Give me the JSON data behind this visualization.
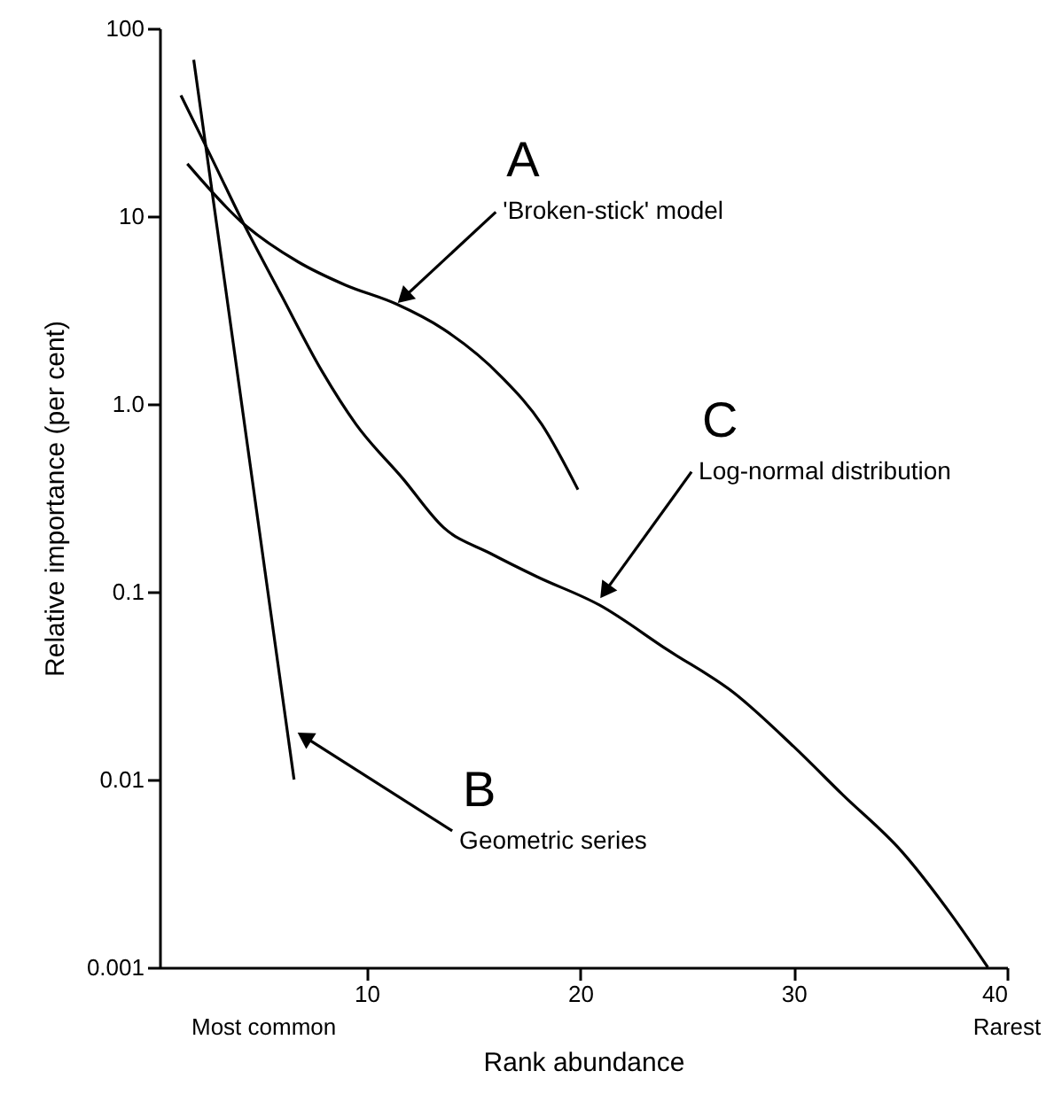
{
  "chart_data": {
    "type": "line",
    "xlabel": "Rank abundance",
    "ylabel": "Relative importance (per cent)",
    "log": "y",
    "xlim": [
      0.3,
      40
    ],
    "xticks": [
      10,
      20,
      30,
      40
    ],
    "ylim": [
      0.001,
      100
    ],
    "yticks": [
      0.001,
      0.01,
      0.1,
      {
        "value": 1,
        "label": "1.0"
      },
      10,
      100
    ],
    "grid": false,
    "line_style": "solid",
    "series": [
      {
        "color": "#000000",
        "x": [
          1.6,
          4.1,
          6.8,
          9.0,
          11.4,
          13.6,
          16.3,
          18.2,
          19.9
        ],
        "values": [
          19,
          9.4,
          5.7,
          4.3,
          3.4,
          2.5,
          1.4,
          0.78,
          0.35
        ]
      },
      {
        "color": "#000000",
        "x": [
          1.9,
          6.6
        ],
        "values": [
          68,
          0.01
        ]
      },
      {
        "color": "#000000",
        "x": [
          1.3,
          2.6,
          4.1,
          6.0,
          7.9,
          9.5,
          11.7,
          13.6,
          15.8,
          18.0,
          20.9,
          24.1,
          27.2,
          30.0,
          32.3,
          35.1,
          37.4,
          39.1
        ],
        "values": [
          44,
          22,
          9.8,
          3.8,
          1.5,
          0.78,
          0.4,
          0.22,
          0.16,
          0.12,
          0.085,
          0.049,
          0.029,
          0.015,
          0.0083,
          0.0041,
          0.0019,
          0.001
        ]
      }
    ],
    "annotations": [
      "A",
      {
        "text": "'Broken-stick' model",
        "x": 11.4,
        "y": 3.4
      },
      "B",
      {
        "text": "Geometric series",
        "x": 6.7,
        "y": 0.018
      },
      "C",
      {
        "text": "Log-normal distribution",
        "x": 20.9,
        "y": 0.091
      },
      "Most common",
      "Rarest"
    ]
  }
}
